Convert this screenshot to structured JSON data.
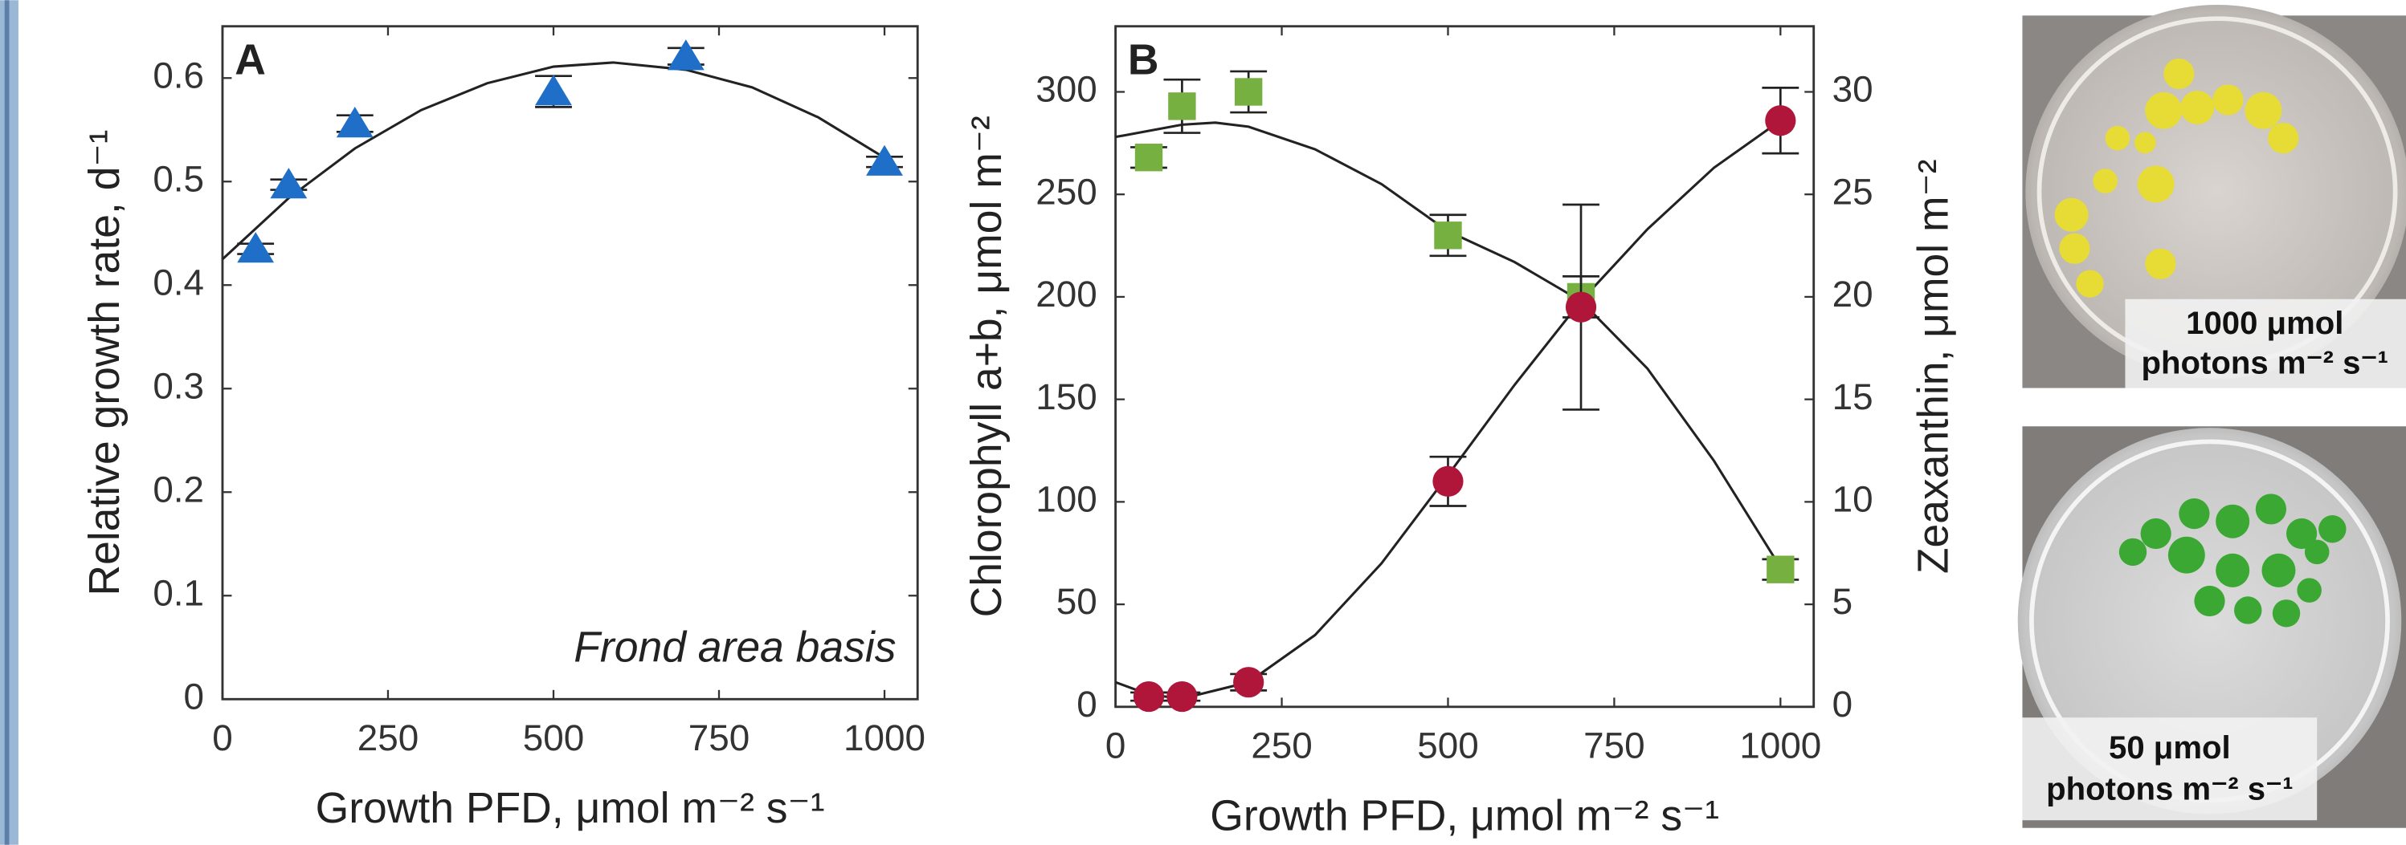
{
  "chart_data": [
    {
      "type": "scatter",
      "panel_label": "A",
      "annotation": "Frond area basis",
      "x_label": "Growth PFD, μmol m⁻² s⁻¹",
      "y_label": "Relative growth rate, d⁻¹",
      "xlim": [
        0,
        1050
      ],
      "ylim": [
        0,
        0.65
      ],
      "xticks": [
        0,
        250,
        500,
        750,
        1000
      ],
      "yticks": [
        0,
        0.1,
        0.2,
        0.3,
        0.4,
        0.5,
        0.6
      ],
      "series": [
        {
          "color": "#1f6fc8",
          "marker": "triangle",
          "x": [
            50,
            100,
            200,
            500,
            700,
            1000
          ],
          "values": [
            0.435,
            0.497,
            0.556,
            0.587,
            0.621,
            0.519
          ],
          "errors": [
            0.005,
            0.005,
            0.008,
            0.015,
            0.008,
            0.005
          ]
        }
      ],
      "fits": [
        {
          "x": [
            0,
            100,
            200,
            300,
            400,
            500,
            590,
            700,
            800,
            900,
            1000
          ],
          "values": [
            0.425,
            0.484,
            0.532,
            0.569,
            0.595,
            0.611,
            0.615,
            0.608,
            0.591,
            0.562,
            0.523
          ]
        }
      ]
    },
    {
      "type": "scatter",
      "panel_label": "B",
      "x_label": "Growth PFD, μmol m⁻² s⁻¹",
      "y_label": "Chlorophyll a+b, μmol m⁻²",
      "y2_label": "Zeaxanthin, μmol m⁻²",
      "xlim": [
        0,
        1050
      ],
      "ylim": [
        0,
        332
      ],
      "y2lim": [
        0,
        33.2
      ],
      "xticks": [
        0,
        250,
        500,
        750,
        1000
      ],
      "yticks": [
        0,
        50,
        100,
        150,
        200,
        250,
        300
      ],
      "y2ticks": [
        0,
        5,
        10,
        15,
        20,
        25,
        30
      ],
      "series": [
        {
          "color": "#76b041",
          "marker": "square",
          "x": [
            50,
            100,
            200,
            500,
            700,
            1000
          ],
          "values": [
            268,
            293,
            300,
            230,
            200,
            67
          ],
          "errors": [
            5,
            13,
            10,
            10,
            10,
            5
          ]
        },
        {
          "color": "#b0153a",
          "marker": "circle",
          "axis": "y2",
          "x": [
            50,
            100,
            200,
            500,
            700,
            1000
          ],
          "values": [
            0.5,
            0.5,
            1.2,
            11,
            19.5,
            28.6
          ],
          "errors": [
            0.2,
            0.2,
            0.4,
            1.2,
            5,
            1.6
          ]
        }
      ],
      "fits": [
        {
          "x": [
            0,
            100,
            150,
            200,
            300,
            400,
            500,
            600,
            700,
            800,
            900,
            1000
          ],
          "values": [
            278,
            284,
            285,
            283,
            272,
            255,
            232,
            217,
            198,
            165,
            120,
            68
          ]
        },
        {
          "axis": "y2",
          "x": [
            0,
            50,
            100,
            200,
            300,
            400,
            500,
            600,
            700,
            800,
            900,
            1000
          ],
          "values": [
            1.2,
            0.6,
            0.4,
            1.2,
            3.5,
            7,
            11.3,
            15.7,
            19.8,
            23.3,
            26.3,
            28.6
          ]
        }
      ]
    }
  ],
  "photos": [
    {
      "label_lines": [
        "1000 μmol",
        "photons m⁻² s⁻¹"
      ]
    },
    {
      "label_lines": [
        "50 μmol",
        "photons m⁻² s⁻¹"
      ]
    }
  ]
}
